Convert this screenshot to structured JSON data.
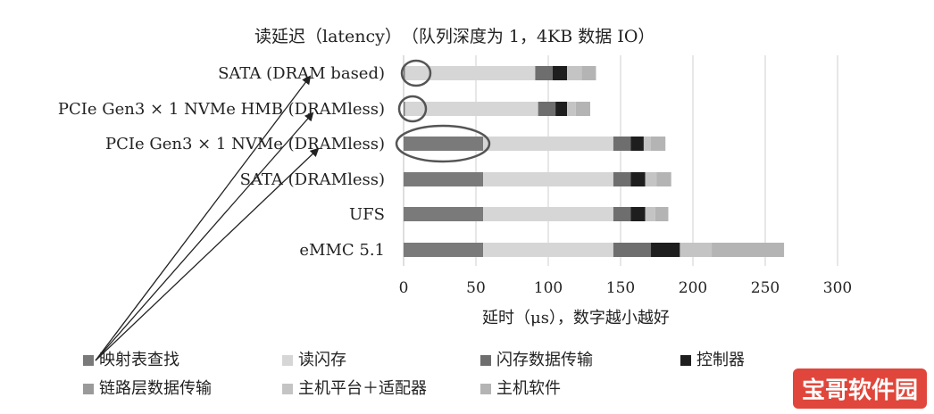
{
  "chart_data": {
    "type": "bar",
    "orientation": "horizontal",
    "stacked": true,
    "title": "读延迟（latency）　（队列深度为 1，4KB 数据 IO）",
    "xlabel": "延时（μs），数字越小越好",
    "xlim": [
      0,
      300
    ],
    "xticks": [
      0,
      50,
      100,
      150,
      200,
      250,
      300
    ],
    "grid": "vertical",
    "legend_position": "bottom",
    "categories": [
      "SATA (DRAM based)",
      "PCIe Gen3 × 1 NVMe HMB (DRAMless)",
      "PCIe Gen3 × 1 NVMe (DRAMless)",
      "SATA (DRAMless)",
      "UFS",
      "eMMC 5.1"
    ],
    "series": [
      {
        "name": "映射表查找",
        "color": "#7a7a7a",
        "values": [
          1,
          1,
          55,
          55,
          55,
          55
        ]
      },
      {
        "name": "读闪存",
        "color": "#d6d6d6",
        "values": [
          90,
          92,
          90,
          90,
          90,
          90
        ]
      },
      {
        "name": "闪存数据传输",
        "color": "#6e6e6e",
        "values": [
          12,
          12,
          12,
          12,
          12,
          26
        ]
      },
      {
        "name": "控制器",
        "color": "#1e1e1e",
        "values": [
          10,
          8,
          9,
          10,
          10,
          20
        ]
      },
      {
        "name": "链路层数据传输",
        "color": "#9a9a9a",
        "values": [
          0,
          0,
          0,
          0,
          0,
          0
        ]
      },
      {
        "name": "主机平台＋适配器",
        "color": "#c4c4c4",
        "values": [
          10,
          6,
          5,
          8,
          7,
          22
        ]
      },
      {
        "name": "主机软件",
        "color": "#b4b4b4",
        "values": [
          10,
          10,
          10,
          10,
          9,
          50
        ]
      }
    ],
    "highlighted_categories": [
      0,
      1,
      2
    ]
  },
  "watermark": "宝哥软件园"
}
